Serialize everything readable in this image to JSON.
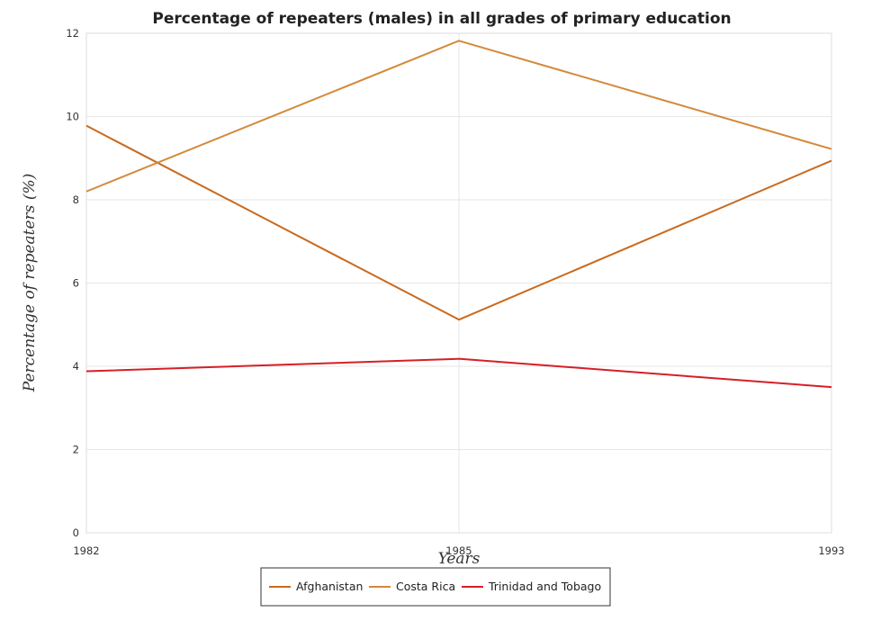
{
  "chart_data": {
    "type": "line",
    "title": "Percentage of repeaters (males) in all grades of primary education",
    "xlabel": "Years",
    "ylabel": "Percentage of repeaters (%)",
    "categories": [
      "1982",
      "1985",
      "1993"
    ],
    "ylim": [
      0,
      12
    ],
    "yticks": [
      "0",
      "2",
      "4",
      "6",
      "8",
      "10",
      "12"
    ],
    "grid": true,
    "legend_position": "bottom-center",
    "series": [
      {
        "name": "Afghanistan",
        "color": "#c96a1e",
        "values": [
          9.78,
          5.12,
          8.94
        ]
      },
      {
        "name": "Costa Rica",
        "color": "#d4893a",
        "values": [
          8.2,
          11.82,
          9.22
        ]
      },
      {
        "name": "Trinidad and Tobago",
        "color": "#d61f26",
        "values": [
          3.88,
          4.18,
          3.5
        ]
      }
    ]
  }
}
